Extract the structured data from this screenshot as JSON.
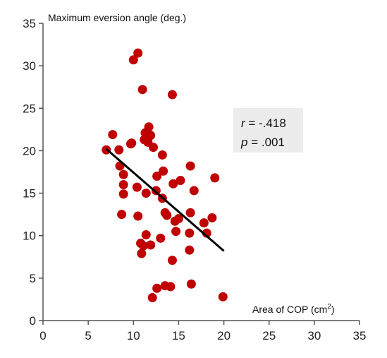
{
  "chart_data": {
    "type": "scatter",
    "xlabel_main": "Area of COP (cm",
    "xlabel_sup": "2",
    "xlabel_tail": ")",
    "ylabel": "Maximum eversion angle (deg.)",
    "xlim": [
      0,
      35
    ],
    "ylim": [
      0,
      35
    ],
    "x_ticks": [
      "0",
      "5",
      "10",
      "15",
      "20",
      "25",
      "30",
      "35"
    ],
    "y_ticks": [
      "0",
      "5",
      "10",
      "15",
      "20",
      "25",
      "30",
      "35"
    ],
    "grid": false,
    "point_color": "#c00000",
    "trendline_color": "#000000",
    "annotation_box_color": "#ececec",
    "stats": {
      "r_label": "r",
      "r_value": " = -.418",
      "p_label": "p",
      "p_value": " = .001"
    },
    "trendline": {
      "x": [
        7,
        20
      ],
      "y": [
        20.2,
        8.2
      ]
    },
    "points": [
      {
        "x": 10.5,
        "y": 31.5
      },
      {
        "x": 10.0,
        "y": 30.7
      },
      {
        "x": 11.0,
        "y": 27.2
      },
      {
        "x": 14.3,
        "y": 26.6
      },
      {
        "x": 11.7,
        "y": 22.8
      },
      {
        "x": 7.7,
        "y": 21.9
      },
      {
        "x": 11.3,
        "y": 22.1
      },
      {
        "x": 11.9,
        "y": 21.8
      },
      {
        "x": 11.2,
        "y": 21.3
      },
      {
        "x": 11.6,
        "y": 21.0
      },
      {
        "x": 9.7,
        "y": 20.8
      },
      {
        "x": 9.8,
        "y": 20.9
      },
      {
        "x": 12.2,
        "y": 20.4
      },
      {
        "x": 7.0,
        "y": 20.1
      },
      {
        "x": 8.4,
        "y": 20.1
      },
      {
        "x": 13.2,
        "y": 19.5
      },
      {
        "x": 8.5,
        "y": 18.2
      },
      {
        "x": 16.3,
        "y": 18.2
      },
      {
        "x": 13.3,
        "y": 17.6
      },
      {
        "x": 8.9,
        "y": 17.2
      },
      {
        "x": 12.6,
        "y": 17.0
      },
      {
        "x": 19.0,
        "y": 16.8
      },
      {
        "x": 15.2,
        "y": 16.5
      },
      {
        "x": 14.4,
        "y": 16.1
      },
      {
        "x": 8.9,
        "y": 16.0
      },
      {
        "x": 10.4,
        "y": 15.7
      },
      {
        "x": 12.5,
        "y": 15.3
      },
      {
        "x": 16.7,
        "y": 15.3
      },
      {
        "x": 11.4,
        "y": 15.0
      },
      {
        "x": 8.9,
        "y": 14.9
      },
      {
        "x": 13.2,
        "y": 14.4
      },
      {
        "x": 8.7,
        "y": 12.5
      },
      {
        "x": 10.5,
        "y": 12.3
      },
      {
        "x": 13.5,
        "y": 12.7
      },
      {
        "x": 13.7,
        "y": 12.4
      },
      {
        "x": 16.3,
        "y": 12.7
      },
      {
        "x": 18.7,
        "y": 12.1
      },
      {
        "x": 15.0,
        "y": 12.0
      },
      {
        "x": 14.6,
        "y": 11.7
      },
      {
        "x": 17.8,
        "y": 11.5
      },
      {
        "x": 14.7,
        "y": 10.5
      },
      {
        "x": 16.2,
        "y": 10.3
      },
      {
        "x": 18.1,
        "y": 10.3
      },
      {
        "x": 11.4,
        "y": 10.1
      },
      {
        "x": 13.0,
        "y": 9.7
      },
      {
        "x": 10.8,
        "y": 9.1
      },
      {
        "x": 11.9,
        "y": 8.9
      },
      {
        "x": 11.1,
        "y": 8.8
      },
      {
        "x": 16.2,
        "y": 8.3
      },
      {
        "x": 10.9,
        "y": 7.9
      },
      {
        "x": 14.3,
        "y": 7.1
      },
      {
        "x": 16.4,
        "y": 4.3
      },
      {
        "x": 13.5,
        "y": 4.1
      },
      {
        "x": 14.1,
        "y": 4.0
      },
      {
        "x": 12.6,
        "y": 3.8
      },
      {
        "x": 19.9,
        "y": 2.8
      },
      {
        "x": 12.1,
        "y": 2.7
      }
    ]
  }
}
